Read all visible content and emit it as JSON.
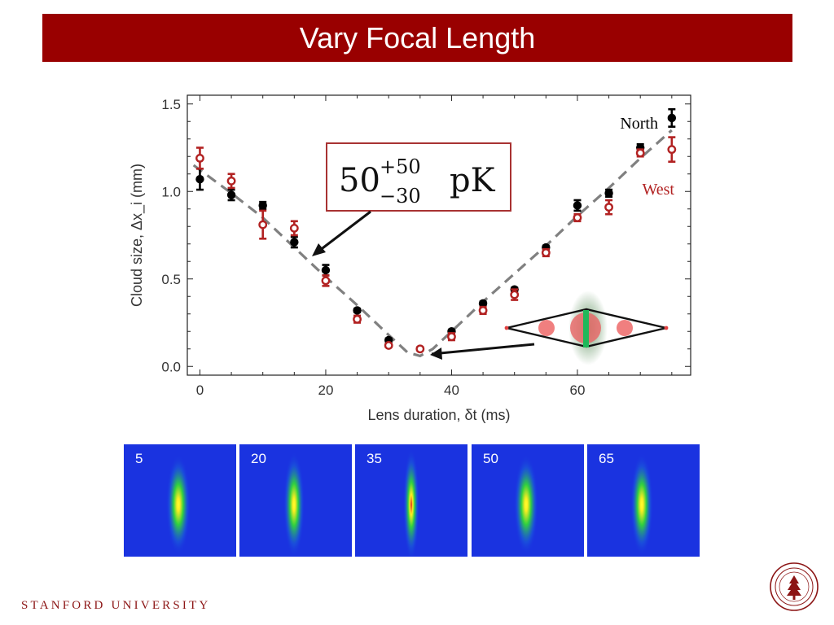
{
  "slide": {
    "title": "Vary Focal Length",
    "footer": "STANFORD UNIVERSITY",
    "title_bar_color": "#990000",
    "brand_color": "#8c1515",
    "seal_icon": "stanford-seal-icon"
  },
  "chart_data": {
    "type": "scatter",
    "title": "",
    "xlabel": "Lens duration, δt (ms)",
    "ylabel": "Cloud size, Δx_i (mm)",
    "xlim": [
      -2,
      78
    ],
    "ylim": [
      -0.05,
      1.55
    ],
    "xticks": [
      0,
      20,
      40,
      60
    ],
    "yticks": [
      0.0,
      0.5,
      1.0,
      1.5
    ],
    "ytick_labels": [
      "0.0",
      "0.5",
      "1.0",
      "1.5"
    ],
    "legend": "top-right",
    "annotation": {
      "base": "50",
      "upper": "+50",
      "lower": "−30",
      "unit": "pK"
    },
    "fit": {
      "style": "dashed",
      "color": "#808080",
      "x": [
        -1,
        5,
        10,
        15,
        20,
        25,
        30,
        33,
        35,
        37,
        40,
        45,
        50,
        55,
        60,
        65,
        70,
        75
      ],
      "y": [
        1.15,
        0.99,
        0.85,
        0.68,
        0.51,
        0.35,
        0.18,
        0.08,
        0.06,
        0.1,
        0.2,
        0.37,
        0.53,
        0.69,
        0.86,
        1.02,
        1.19,
        1.35
      ]
    },
    "series": [
      {
        "name": "North",
        "color": "#000000",
        "marker": "filled-circle",
        "x": [
          0,
          5,
          10,
          15,
          20,
          25,
          30,
          40,
          45,
          50,
          55,
          60,
          65,
          70,
          75
        ],
        "y": [
          1.07,
          0.98,
          0.92,
          0.71,
          0.55,
          0.32,
          0.15,
          0.2,
          0.36,
          0.44,
          0.68,
          0.92,
          0.99,
          1.25,
          1.42
        ],
        "err": [
          0.06,
          0.03,
          0.02,
          0.03,
          0.03,
          0.01,
          0.01,
          0.01,
          0.01,
          0.01,
          0.01,
          0.03,
          0.02,
          0.02,
          0.05
        ]
      },
      {
        "name": "West",
        "color": "#b22222",
        "marker": "open-circle",
        "x": [
          0,
          5,
          10,
          15,
          20,
          25,
          30,
          35,
          40,
          45,
          50,
          55,
          60,
          65,
          70,
          75
        ],
        "y": [
          1.19,
          1.06,
          0.81,
          0.79,
          0.49,
          0.27,
          0.12,
          0.1,
          0.17,
          0.32,
          0.41,
          0.65,
          0.85,
          0.91,
          1.22,
          1.24
        ],
        "err": [
          0.06,
          0.04,
          0.08,
          0.04,
          0.03,
          0.02,
          0.01,
          0.01,
          0.02,
          0.02,
          0.03,
          0.02,
          0.02,
          0.04,
          0.02,
          0.07
        ]
      }
    ]
  },
  "images": [
    {
      "label": "5",
      "spread": 0.55,
      "peak": 0.75
    },
    {
      "label": "20",
      "spread": 0.45,
      "peak": 0.85
    },
    {
      "label": "35",
      "spread": 0.3,
      "peak": 1.0
    },
    {
      "label": "50",
      "spread": 0.55,
      "peak": 0.8
    },
    {
      "label": "65",
      "spread": 0.5,
      "peak": 0.75
    }
  ]
}
